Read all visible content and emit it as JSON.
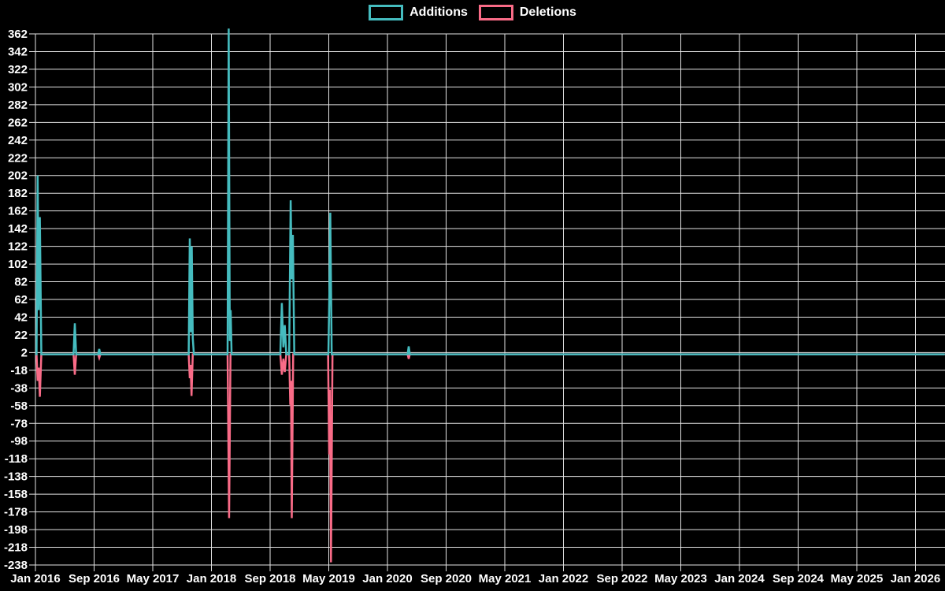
{
  "chart": {
    "background_color": "#000000",
    "grid_color": "#e3e3e3",
    "text_color": "#ffffff"
  },
  "chart_data": {
    "type": "line",
    "title": "",
    "legend_position": "top-center",
    "x_unit": "months since Jan 2016",
    "x_tick_interval_months": 8,
    "x_tick_labels": [
      "Jan 2016",
      "Sep 2016",
      "May 2017",
      "Jan 2018",
      "Sep 2018",
      "May 2019",
      "Jan 2020",
      "Sep 2020",
      "May 2021",
      "Jan 2022",
      "Sep 2022",
      "May 2023",
      "Jan 2024",
      "Sep 2024",
      "May 2025",
      "Jan 2026"
    ],
    "y_ticks": [
      362,
      342,
      322,
      302,
      282,
      262,
      242,
      222,
      202,
      182,
      162,
      142,
      122,
      102,
      82,
      62,
      42,
      22,
      2,
      -18,
      -38,
      -58,
      -78,
      -98,
      -118,
      -138,
      -158,
      -178,
      -198,
      -218,
      -238
    ],
    "ylim": [
      -238,
      362
    ],
    "xlim_months": [
      0,
      124
    ],
    "baseline_value": 0,
    "grid": true,
    "series": [
      {
        "name": "Additions",
        "color": "#45bcbf",
        "points": [
          [
            0,
            0
          ],
          [
            0.15,
            0
          ],
          [
            0.3,
            202
          ],
          [
            0.45,
            50
          ],
          [
            0.6,
            155
          ],
          [
            0.8,
            0
          ],
          [
            5.2,
            0
          ],
          [
            5.37,
            35
          ],
          [
            5.55,
            0
          ],
          [
            8.55,
            0
          ],
          [
            8.7,
            6
          ],
          [
            8.85,
            0
          ],
          [
            20.9,
            0
          ],
          [
            21.05,
            131
          ],
          [
            21.2,
            25
          ],
          [
            21.32,
            122
          ],
          [
            21.45,
            18
          ],
          [
            21.6,
            0
          ],
          [
            26.2,
            0
          ],
          [
            26.35,
            368
          ],
          [
            26.5,
            15
          ],
          [
            26.62,
            50
          ],
          [
            26.75,
            0
          ],
          [
            33.4,
            0
          ],
          [
            33.6,
            58
          ],
          [
            33.8,
            8
          ],
          [
            34.0,
            33
          ],
          [
            34.2,
            0
          ],
          [
            34.6,
            0
          ],
          [
            34.8,
            174
          ],
          [
            34.95,
            85
          ],
          [
            35.1,
            135
          ],
          [
            35.3,
            0
          ],
          [
            39.95,
            0
          ],
          [
            40.1,
            77
          ],
          [
            40.2,
            160
          ],
          [
            40.4,
            0
          ],
          [
            50.75,
            0
          ],
          [
            50.9,
            9
          ],
          [
            51.05,
            0
          ],
          [
            124,
            0
          ]
        ]
      },
      {
        "name": "Deletions",
        "color": "#f96b87",
        "points": [
          [
            0,
            0
          ],
          [
            0.15,
            0
          ],
          [
            0.3,
            -30
          ],
          [
            0.45,
            -15
          ],
          [
            0.6,
            -48
          ],
          [
            0.8,
            0
          ],
          [
            5.2,
            0
          ],
          [
            5.37,
            -23
          ],
          [
            5.55,
            0
          ],
          [
            8.55,
            0
          ],
          [
            8.7,
            -4
          ],
          [
            8.85,
            0
          ],
          [
            20.9,
            0
          ],
          [
            21.05,
            -27
          ],
          [
            21.15,
            -12
          ],
          [
            21.28,
            -47
          ],
          [
            21.45,
            0
          ],
          [
            26.2,
            0
          ],
          [
            26.4,
            -185
          ],
          [
            26.6,
            0
          ],
          [
            33.4,
            0
          ],
          [
            33.6,
            -23
          ],
          [
            33.8,
            -5
          ],
          [
            34.0,
            -20
          ],
          [
            34.2,
            0
          ],
          [
            34.6,
            0
          ],
          [
            34.75,
            -57
          ],
          [
            34.85,
            -30
          ],
          [
            34.95,
            -185
          ],
          [
            35.15,
            0
          ],
          [
            39.9,
            0
          ],
          [
            40.05,
            -113
          ],
          [
            40.15,
            -40
          ],
          [
            40.3,
            -235
          ],
          [
            40.5,
            0
          ],
          [
            50.75,
            0
          ],
          [
            50.9,
            -5
          ],
          [
            51.05,
            0
          ],
          [
            124,
            0
          ]
        ]
      }
    ]
  }
}
